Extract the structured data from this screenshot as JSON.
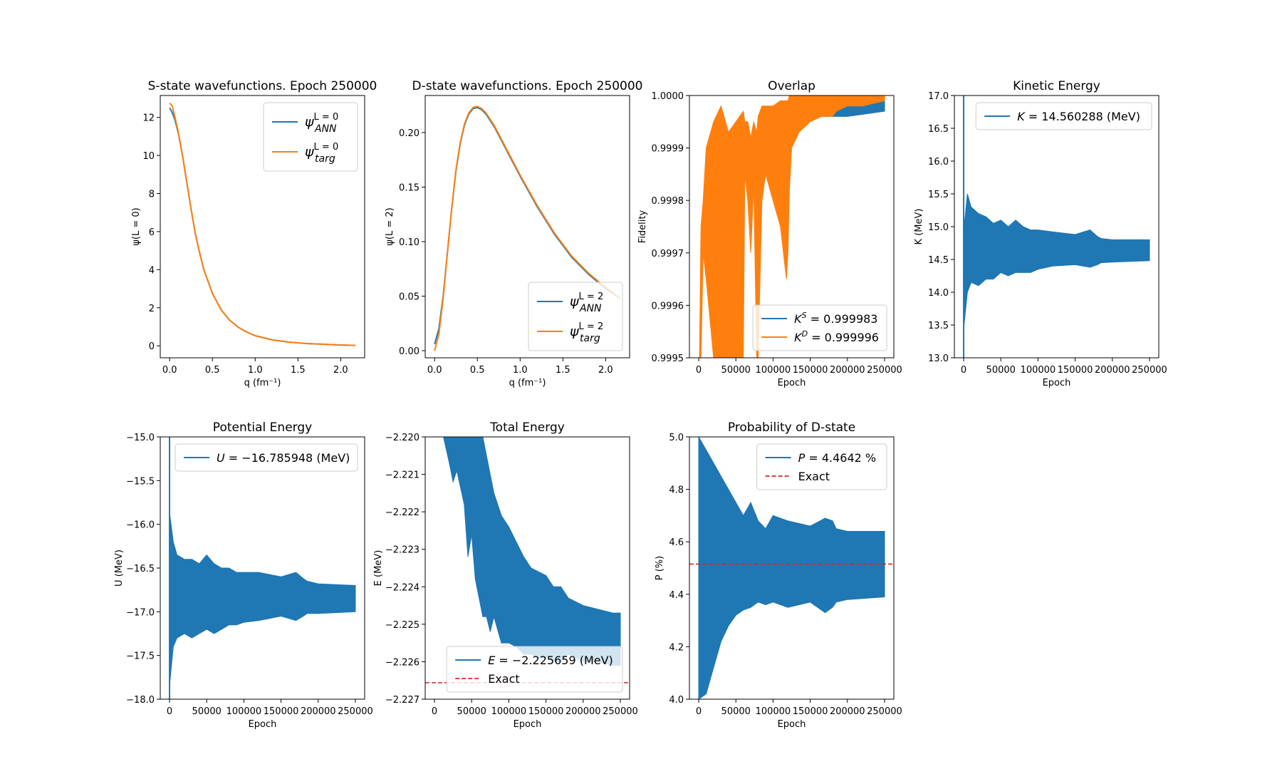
{
  "colors": {
    "blue": "#1f77b4",
    "orange": "#ff7f0e",
    "exact": "#d62728"
  },
  "chart_data": [
    {
      "id": "s_wave",
      "type": "line",
      "title": "S-state wavefunctions. Epoch 250000",
      "xlabel": "q (fm⁻¹)",
      "ylabel": "ψ(L = 0)",
      "xlim": [
        -0.11,
        2.28
      ],
      "ylim": [
        -0.63,
        13.15
      ],
      "xticks": [
        0.0,
        0.5,
        1.0,
        1.5,
        2.0
      ],
      "xtick_labels": [
        "0.0",
        "0.5",
        "1.0",
        "1.5",
        "2.0"
      ],
      "yticks": [
        0,
        2,
        4,
        6,
        8,
        10,
        12
      ],
      "ytick_labels": [
        "0",
        "2",
        "4",
        "6",
        "8",
        "10",
        "12"
      ],
      "legend_loc": "upper right",
      "legend_style": "big",
      "series": [
        {
          "legend_main": "ψ",
          "legend_sup": "L = 0",
          "legend_sub": "ANN",
          "color": "#1f77b4",
          "x": [
            0.0,
            0.03,
            0.06,
            0.1,
            0.15,
            0.2,
            0.25,
            0.3,
            0.35,
            0.4,
            0.5,
            0.6,
            0.7,
            0.8,
            0.9,
            1.0,
            1.2,
            1.4,
            1.6,
            1.8,
            2.0,
            2.17
          ],
          "y": [
            12.5,
            12.25,
            11.9,
            11.2,
            10.0,
            8.6,
            7.2,
            5.9,
            4.9,
            4.0,
            2.75,
            1.9,
            1.35,
            0.98,
            0.72,
            0.53,
            0.31,
            0.19,
            0.12,
            0.08,
            0.04,
            0.02
          ]
        },
        {
          "legend_main": "ψ",
          "legend_sup": "L = 0",
          "legend_sub": "targ",
          "color": "#ff7f0e",
          "x": [
            0.0,
            0.03,
            0.06,
            0.1,
            0.15,
            0.2,
            0.25,
            0.3,
            0.35,
            0.4,
            0.5,
            0.6,
            0.7,
            0.8,
            0.9,
            1.0,
            1.2,
            1.4,
            1.6,
            1.8,
            2.0,
            2.17
          ],
          "y": [
            12.75,
            12.6,
            12.05,
            11.25,
            10.0,
            8.6,
            7.2,
            5.9,
            4.9,
            4.0,
            2.75,
            1.9,
            1.35,
            0.98,
            0.72,
            0.53,
            0.31,
            0.19,
            0.12,
            0.08,
            0.04,
            0.02
          ]
        }
      ]
    },
    {
      "id": "d_wave",
      "type": "line",
      "title": "D-state wavefunctions. Epoch 250000",
      "xlabel": "q (fm⁻¹)",
      "ylabel": "ψ(L = 2)",
      "xlim": [
        -0.11,
        2.28
      ],
      "ylim": [
        -0.0065,
        0.234
      ],
      "xticks": [
        0.0,
        0.5,
        1.0,
        1.5,
        2.0
      ],
      "xtick_labels": [
        "0.0",
        "0.5",
        "1.0",
        "1.5",
        "2.0"
      ],
      "yticks": [
        0.0,
        0.05,
        0.1,
        0.15,
        0.2
      ],
      "ytick_labels": [
        "0.00",
        "0.05",
        "0.10",
        "0.15",
        "0.20"
      ],
      "legend_loc": "lower right",
      "legend_style": "big",
      "series": [
        {
          "legend_main": "ψ",
          "legend_sup": "L = 2",
          "legend_sub": "ANN",
          "color": "#1f77b4",
          "x": [
            0.0,
            0.05,
            0.1,
            0.15,
            0.2,
            0.25,
            0.3,
            0.35,
            0.4,
            0.45,
            0.5,
            0.55,
            0.6,
            0.7,
            0.8,
            0.9,
            1.0,
            1.2,
            1.4,
            1.6,
            1.8,
            2.0,
            2.17
          ],
          "y": [
            0.006,
            0.02,
            0.05,
            0.09,
            0.13,
            0.165,
            0.19,
            0.207,
            0.217,
            0.222,
            0.223,
            0.221,
            0.217,
            0.205,
            0.19,
            0.175,
            0.16,
            0.132,
            0.107,
            0.086,
            0.07,
            0.057,
            0.048
          ]
        },
        {
          "legend_main": "ψ",
          "legend_sup": "L = 2",
          "legend_sub": "targ",
          "color": "#ff7f0e",
          "x": [
            0.0,
            0.05,
            0.1,
            0.15,
            0.2,
            0.25,
            0.3,
            0.35,
            0.4,
            0.45,
            0.5,
            0.55,
            0.6,
            0.7,
            0.8,
            0.9,
            1.0,
            1.2,
            1.4,
            1.6,
            1.8,
            2.0,
            2.17
          ],
          "y": [
            0.0,
            0.015,
            0.048,
            0.09,
            0.13,
            0.166,
            0.191,
            0.208,
            0.218,
            0.223,
            0.224,
            0.222,
            0.218,
            0.206,
            0.191,
            0.176,
            0.161,
            0.133,
            0.108,
            0.087,
            0.071,
            0.058,
            0.048
          ]
        }
      ]
    },
    {
      "id": "overlap",
      "type": "area",
      "title": "Overlap",
      "xlabel": "Epoch",
      "ylabel": "Fidelity",
      "xlim": [
        -12500,
        262500
      ],
      "ylim": [
        0.9995,
        1.0
      ],
      "xticks": [
        0,
        50000,
        100000,
        150000,
        200000,
        250000
      ],
      "xtick_labels": [
        "0",
        "50000",
        "100000",
        "150000",
        "200000",
        "250000"
      ],
      "yticks": [
        0.9995,
        0.9996,
        0.9997,
        0.9998,
        0.9999,
        1.0
      ],
      "ytick_labels": [
        "0.9995",
        "0.9996",
        "0.9997",
        "0.9998",
        "0.9999",
        "1.0000"
      ],
      "legend_loc": "lower right",
      "legend_style": "small",
      "series": [
        {
          "legend_main": "K",
          "legend_sup": "S",
          "legend_text": " = 0.999983",
          "color": "#1f77b4",
          "band_x": [
            90000,
            110000,
            130000,
            150000,
            180000,
            200000,
            250000
          ],
          "band_lo": [
            0.99993,
            0.99995,
            0.99995,
            0.99996,
            0.99996,
            0.99996,
            0.99997
          ],
          "band_hi": [
            0.99997,
            0.99998,
            0.99999,
            0.99999,
            0.99999,
            0.99999,
            1.0
          ]
        },
        {
          "legend_main": "K",
          "legend_sup": "D",
          "legend_text": " = 0.999996",
          "color": "#ff7f0e",
          "band_x": [
            1000,
            3000,
            6000,
            10000,
            20000,
            30000,
            40000,
            50000,
            60000,
            62000,
            66000,
            70000,
            74000,
            78000,
            80000,
            85000,
            90000,
            100000,
            110000,
            118000,
            120000,
            122000,
            125000,
            135000,
            150000,
            165000,
            175000,
            180000,
            185000,
            200000,
            220000,
            250000
          ],
          "band_lo": [
            0.9995,
            0.9995,
            0.9997,
            0.99965,
            0.9995,
            0.9995,
            0.9995,
            0.9995,
            0.9995,
            0.99985,
            0.9998,
            0.9997,
            0.99983,
            0.9995,
            0.9995,
            0.9998,
            0.99985,
            0.9998,
            0.99975,
            0.99965,
            0.9997,
            0.99982,
            0.9999,
            0.99993,
            0.99995,
            0.99996,
            0.99996,
            0.99996,
            0.99997,
            0.99998,
            0.99998,
            0.99999
          ],
          "band_hi": [
            0.9995,
            0.99975,
            0.9998,
            0.9999,
            0.99995,
            0.99998,
            0.99993,
            0.99995,
            0.99997,
            0.99995,
            0.99995,
            0.99992,
            0.99995,
            0.99993,
            0.99996,
            0.99998,
            0.99998,
            0.99998,
            0.99999,
            0.99999,
            0.99999,
            1.0,
            1.0,
            1.0,
            1.0,
            1.0,
            1.0,
            1.0,
            1.0,
            1.0,
            1.0,
            1.0
          ]
        }
      ]
    },
    {
      "id": "kinetic",
      "type": "area",
      "title": "Kinetic Energy",
      "xlabel": "Epoch",
      "ylabel": "K (MeV)",
      "xlim": [
        -12500,
        262500
      ],
      "ylim": [
        13.0,
        17.0
      ],
      "xticks": [
        0,
        50000,
        100000,
        150000,
        200000,
        250000
      ],
      "xtick_labels": [
        "0",
        "50000",
        "100000",
        "150000",
        "200000",
        "250000"
      ],
      "yticks": [
        13.0,
        13.5,
        14.0,
        14.5,
        15.0,
        15.5,
        16.0,
        16.5,
        17.0
      ],
      "ytick_labels": [
        "13.0",
        "13.5",
        "14.0",
        "14.5",
        "15.0",
        "15.5",
        "16.0",
        "16.5",
        "17.0"
      ],
      "legend_loc": "upper right",
      "legend_style": "small",
      "series": [
        {
          "legend_main": "K",
          "legend_text": " = 14.560288 (MeV)",
          "color": "#1f77b4",
          "spike": {
            "x": 0,
            "lo": 13.0,
            "hi": 17.0
          },
          "band_x": [
            500,
            5000,
            10000,
            20000,
            30000,
            40000,
            50000,
            60000,
            70000,
            80000,
            90000,
            100000,
            120000,
            150000,
            170000,
            180000,
            185000,
            200000,
            250000
          ],
          "band_lo": [
            13.5,
            14.0,
            14.15,
            14.1,
            14.2,
            14.2,
            14.3,
            14.25,
            14.3,
            14.3,
            14.3,
            14.35,
            14.4,
            14.42,
            14.38,
            14.42,
            14.45,
            14.46,
            14.48
          ],
          "band_hi": [
            15.0,
            15.5,
            15.3,
            15.2,
            15.15,
            15.05,
            15.1,
            15.0,
            15.1,
            15.0,
            14.95,
            14.95,
            14.92,
            14.88,
            14.95,
            14.85,
            14.82,
            14.8,
            14.8
          ]
        }
      ]
    },
    {
      "id": "potential",
      "type": "area",
      "title": "Potential Energy",
      "xlabel": "Epoch",
      "ylabel": "U (MeV)",
      "xlim": [
        -12500,
        262500
      ],
      "ylim": [
        -18.0,
        -15.0
      ],
      "xticks": [
        0,
        50000,
        100000,
        150000,
        200000,
        250000
      ],
      "xtick_labels": [
        "0",
        "50000",
        "100000",
        "150000",
        "200000",
        "250000"
      ],
      "yticks": [
        -18.0,
        -17.5,
        -17.0,
        -16.5,
        -16.0,
        -15.5,
        -15.0
      ],
      "ytick_labels": [
        "−18.0",
        "−17.5",
        "−17.0",
        "−16.5",
        "−16.0",
        "−15.5",
        "−15.0"
      ],
      "legend_loc": "upper right",
      "legend_style": "small",
      "series": [
        {
          "legend_main": "U",
          "legend_text": " = −16.785948 (MeV)",
          "color": "#1f77b4",
          "spike": {
            "x": 0,
            "lo": -18.0,
            "hi": -15.0
          },
          "band_x": [
            500,
            5000,
            10000,
            20000,
            30000,
            40000,
            50000,
            60000,
            70000,
            80000,
            90000,
            100000,
            120000,
            150000,
            170000,
            180000,
            185000,
            200000,
            250000
          ],
          "band_lo": [
            -17.8,
            -17.4,
            -17.3,
            -17.25,
            -17.3,
            -17.25,
            -17.2,
            -17.25,
            -17.2,
            -17.15,
            -17.15,
            -17.12,
            -17.1,
            -17.05,
            -17.1,
            -17.05,
            -17.02,
            -17.02,
            -17.0
          ],
          "band_hi": [
            -15.9,
            -16.2,
            -16.35,
            -16.4,
            -16.4,
            -16.45,
            -16.35,
            -16.45,
            -16.5,
            -16.5,
            -16.55,
            -16.55,
            -16.55,
            -16.6,
            -16.55,
            -16.62,
            -16.65,
            -16.68,
            -16.7
          ]
        }
      ]
    },
    {
      "id": "total",
      "type": "area",
      "title": "Total Energy",
      "xlabel": "Epoch",
      "ylabel": "E (MeV)",
      "xlim": [
        -12500,
        262500
      ],
      "ylim": [
        -2.227,
        -2.22
      ],
      "xticks": [
        0,
        50000,
        100000,
        150000,
        200000,
        250000
      ],
      "xtick_labels": [
        "0",
        "50000",
        "100000",
        "150000",
        "200000",
        "250000"
      ],
      "yticks": [
        -2.227,
        -2.226,
        -2.225,
        -2.224,
        -2.223,
        -2.222,
        -2.221,
        -2.22
      ],
      "ytick_labels": [
        "−2.227",
        "−2.226",
        "−2.225",
        "−2.224",
        "−2.223",
        "−2.222",
        "−2.221",
        "−2.220"
      ],
      "legend_loc": "lower right",
      "legend_style": "small",
      "exact": -2.22656,
      "exact_label": "Exact",
      "series": [
        {
          "legend_main": "E",
          "legend_text": " = −2.225659 (MeV)",
          "color": "#1f77b4",
          "band_x": [
            12000,
            20000,
            25000,
            30000,
            40000,
            45000,
            50000,
            55000,
            60000,
            65000,
            70000,
            75000,
            80000,
            90000,
            100000,
            110000,
            120000,
            130000,
            140000,
            150000,
            160000,
            170000,
            180000,
            200000,
            220000,
            240000,
            250000
          ],
          "band_lo": [
            -2.22,
            -2.2207,
            -2.2212,
            -2.2209,
            -2.2218,
            -2.2232,
            -2.2226,
            -2.2238,
            -2.2243,
            -2.2248,
            -2.2248,
            -2.2252,
            -2.2248,
            -2.2255,
            -2.2255,
            -2.2256,
            -2.2258,
            -2.2258,
            -2.2259,
            -2.2259,
            -2.226,
            -2.226,
            -2.2258,
            -2.226,
            -2.226,
            -2.2261,
            -2.2261
          ],
          "band_hi": [
            -2.22,
            -2.22,
            -2.22,
            -2.22,
            -2.22,
            -2.22,
            -2.22,
            -2.22,
            -2.22,
            -2.22,
            -2.2205,
            -2.221,
            -2.2215,
            -2.2221,
            -2.2224,
            -2.2228,
            -2.2232,
            -2.2235,
            -2.2236,
            -2.2237,
            -2.224,
            -2.224,
            -2.2243,
            -2.2245,
            -2.2246,
            -2.2247,
            -2.2247
          ]
        }
      ]
    },
    {
      "id": "prob_d",
      "type": "area",
      "title": "Probability of D-state",
      "xlabel": "Epoch",
      "ylabel": "P (%)",
      "xlim": [
        -12500,
        262500
      ],
      "ylim": [
        4.0,
        5.0
      ],
      "xticks": [
        0,
        50000,
        100000,
        150000,
        200000,
        250000
      ],
      "xtick_labels": [
        "0",
        "50000",
        "100000",
        "150000",
        "200000",
        "250000"
      ],
      "yticks": [
        4.0,
        4.2,
        4.4,
        4.6,
        4.8,
        5.0
      ],
      "ytick_labels": [
        "4.0",
        "4.2",
        "4.4",
        "4.6",
        "4.8",
        "5.0"
      ],
      "legend_loc": "upper right",
      "legend_style": "small",
      "exact": 4.515,
      "exact_label": "Exact",
      "series": [
        {
          "legend_main": "P",
          "legend_text": " = 4.4642 %",
          "color": "#1f77b4",
          "band_x": [
            0,
            10000,
            20000,
            30000,
            40000,
            50000,
            60000,
            70000,
            80000,
            90000,
            100000,
            120000,
            150000,
            170000,
            180000,
            185000,
            200000,
            250000
          ],
          "band_lo": [
            4.0,
            4.02,
            4.12,
            4.22,
            4.28,
            4.32,
            4.34,
            4.35,
            4.37,
            4.36,
            4.37,
            4.35,
            4.37,
            4.33,
            4.35,
            4.37,
            4.38,
            4.39
          ],
          "band_hi": [
            5.0,
            4.95,
            4.9,
            4.85,
            4.8,
            4.75,
            4.7,
            4.75,
            4.68,
            4.65,
            4.7,
            4.68,
            4.66,
            4.69,
            4.68,
            4.65,
            4.64,
            4.64
          ]
        }
      ]
    }
  ]
}
